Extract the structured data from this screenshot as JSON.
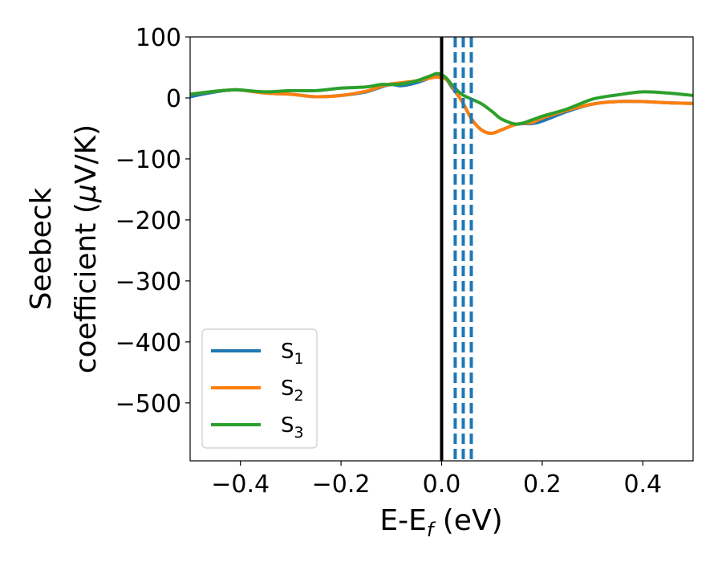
{
  "chart_data": {
    "type": "line",
    "title": "",
    "xlabel": "E-E",
    "xlabel_sub": "f",
    "xlabel_unit": " (eV)",
    "ylabel_line1": "Seebeck",
    "ylabel_line2_text": "coefficient  (",
    "ylabel_mu": "μ",
    "ylabel_unit": "V/K)",
    "xlim": [
      -0.5,
      0.5
    ],
    "ylim": [
      -595,
      100
    ],
    "xticks": [
      -0.4,
      -0.2,
      0.0,
      0.2,
      0.4
    ],
    "xtick_labels": [
      "−0.4",
      "−0.2",
      "0.0",
      "0.2",
      "0.4"
    ],
    "yticks": [
      100,
      0,
      -100,
      -200,
      -300,
      -400,
      -500
    ],
    "ytick_labels": [
      "100",
      "0",
      "−100",
      "−200",
      "−300",
      "−400",
      "−500"
    ],
    "grid": false,
    "legend_position": "lower-left",
    "vline_solid": {
      "x": 0.0,
      "color": "#000000"
    },
    "vlines_dashed": {
      "x": [
        0.027,
        0.043,
        0.059
      ],
      "color": "#1f77b4"
    },
    "series": [
      {
        "name": "S",
        "sub": "1",
        "color": "#1f77b4",
        "x": [
          -0.5,
          -0.45,
          -0.42,
          -0.4,
          -0.35,
          -0.3,
          -0.25,
          -0.2,
          -0.15,
          -0.12,
          -0.1,
          -0.08,
          -0.05,
          -0.02,
          -0.01,
          0.0,
          0.01,
          0.02,
          0.04,
          0.06,
          0.08,
          0.1,
          0.12,
          0.15,
          0.18,
          0.2,
          0.25,
          0.3,
          0.35,
          0.4,
          0.45,
          0.5
        ],
        "y": [
          2,
          10,
          13,
          13,
          8,
          6,
          2,
          4,
          10,
          18,
          22,
          20,
          25,
          34,
          38,
          36,
          30,
          18,
          -5,
          -35,
          -53,
          -58,
          -52,
          -43,
          -42,
          -38,
          -22,
          -10,
          -6,
          -6,
          -8,
          -9
        ]
      },
      {
        "name": "S",
        "sub": "2",
        "color": "#ff7f0e",
        "x": [
          -0.5,
          -0.45,
          -0.42,
          -0.4,
          -0.35,
          -0.3,
          -0.25,
          -0.2,
          -0.15,
          -0.12,
          -0.1,
          -0.08,
          -0.05,
          -0.02,
          -0.01,
          0.0,
          0.01,
          0.02,
          0.04,
          0.06,
          0.08,
          0.1,
          0.12,
          0.15,
          0.18,
          0.2,
          0.25,
          0.3,
          0.35,
          0.4,
          0.45,
          0.5
        ],
        "y": [
          6,
          11,
          13,
          13,
          8,
          6,
          2,
          4,
          11,
          19,
          23,
          25,
          28,
          33,
          34,
          33,
          30,
          20,
          -5,
          -35,
          -53,
          -58,
          -52,
          -43,
          -40,
          -33,
          -20,
          -10,
          -6,
          -6,
          -8,
          -9
        ]
      },
      {
        "name": "S",
        "sub": "3",
        "color": "#2ca02c",
        "x": [
          -0.5,
          -0.45,
          -0.42,
          -0.4,
          -0.35,
          -0.3,
          -0.25,
          -0.2,
          -0.15,
          -0.12,
          -0.1,
          -0.08,
          -0.05,
          -0.02,
          -0.01,
          0.0,
          0.01,
          0.02,
          0.04,
          0.06,
          0.08,
          0.1,
          0.12,
          0.15,
          0.18,
          0.2,
          0.25,
          0.3,
          0.35,
          0.4,
          0.45,
          0.5
        ],
        "y": [
          6,
          11,
          13,
          13,
          10,
          12,
          12,
          16,
          18,
          22,
          22,
          23,
          28,
          37,
          40,
          38,
          32,
          22,
          6,
          -2,
          -10,
          -22,
          -35,
          -43,
          -36,
          -30,
          -18,
          -2,
          5,
          10,
          8,
          4
        ]
      }
    ]
  }
}
